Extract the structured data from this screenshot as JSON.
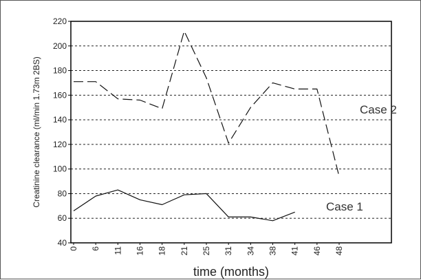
{
  "chart_data": {
    "type": "line",
    "title": "",
    "xlabel": "time (months)",
    "ylabel": "Creatinine clearance (ml/min 1.73m 2BS)",
    "categories": [
      "0",
      "6",
      "11",
      "16",
      "18",
      "21",
      "25",
      "31",
      "34",
      "38",
      "41",
      "46",
      "48"
    ],
    "ylim": [
      40,
      220
    ],
    "yticks": [
      40,
      60,
      80,
      100,
      120,
      140,
      160,
      180,
      200,
      220
    ],
    "grid": "horizontal dashed",
    "series": [
      {
        "name": "Case 1",
        "style": "solid",
        "values": [
          66,
          78,
          83,
          75,
          71,
          79,
          80,
          61,
          61,
          58,
          65,
          null,
          null
        ]
      },
      {
        "name": "Case 2",
        "style": "dashed",
        "values": [
          171,
          171,
          157,
          156,
          149,
          212,
          174,
          121,
          150,
          170,
          165,
          165,
          94
        ]
      }
    ],
    "colors": {
      "line": "#111111",
      "grid": "#222222",
      "frame": "#000000"
    }
  }
}
